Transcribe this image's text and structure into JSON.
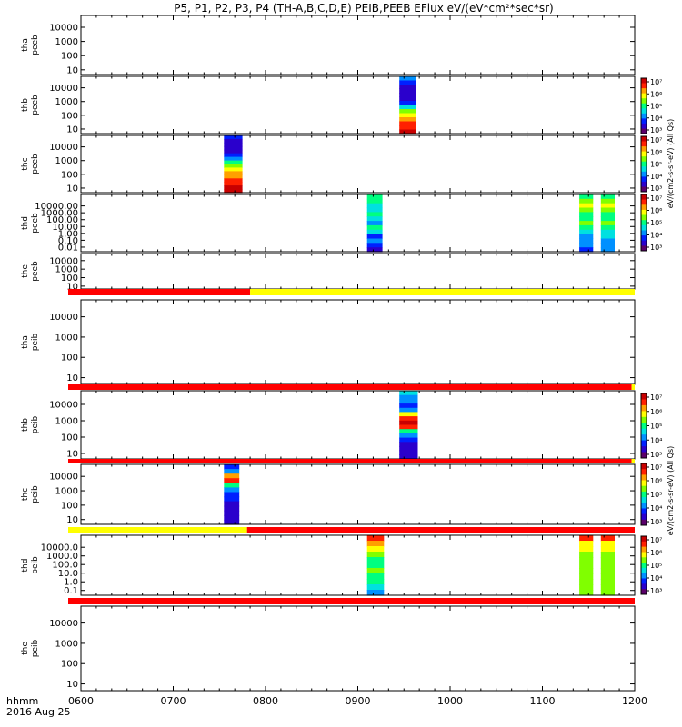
{
  "title": "P5, P1, P2, P3, P4 (TH-A,B,C,D,E) PEIB,PEEB EFlux eV/(eV*cm²*sec*sr)",
  "colorbar_label_top": "eV/(cm2-s-sr-eV) (All Qs)",
  "colorbar_label_bottom": "eV/(cm2-s-sr-eV) (All Qs)",
  "x_axis": {
    "unit_label": "hhmm",
    "date_label": "2016 Aug 25",
    "ticks": [
      "0600",
      "0700",
      "0800",
      "0900",
      "1000",
      "1100",
      "1200"
    ]
  },
  "colors": {
    "flag_red": "#ff0000",
    "flag_yellow": "#ffff00",
    "colormap": [
      "#5a006a",
      "#2a00cc",
      "#0020ff",
      "#0090ff",
      "#00e0e0",
      "#00ff80",
      "#80ff00",
      "#ffff00",
      "#ffa000",
      "#ff2000",
      "#c80000"
    ]
  },
  "colorbar_ticks": [
    "10⁷",
    "10⁶",
    "10⁵",
    "10⁴",
    "10³"
  ],
  "chart_data": {
    "type": "heatmap",
    "x_range": [
      "2016-08-25 06:00",
      "2016-08-25 12:00"
    ],
    "x_scale": "time",
    "y_scale": "log",
    "grid": false,
    "colorbar_scale": "log",
    "panels": [
      {
        "name": "tha-peeb",
        "label_lines": [
          "tha",
          "peeb"
        ],
        "y_ticks": [
          "10000",
          "1000",
          "100",
          "10"
        ],
        "y_range_eV": [
          5,
          30000
        ],
        "has_data": false,
        "has_colorbar": false,
        "blocks": []
      },
      {
        "name": "thb-peeb",
        "label_lines": [
          "thb",
          "peeb"
        ],
        "y_ticks": [
          "10000",
          "1000",
          "100",
          "10"
        ],
        "y_range_eV": [
          5,
          30000
        ],
        "has_data": true,
        "has_colorbar": true,
        "blocks": [
          {
            "start": "09:27",
            "end": "09:38",
            "colors": [
              3,
              2,
              1,
              1,
              1,
              1,
              2,
              4,
              6,
              7,
              8,
              9,
              9,
              10
            ]
          }
        ]
      },
      {
        "name": "thc-peeb",
        "label_lines": [
          "thc",
          "peeb"
        ],
        "y_ticks": [
          "10000",
          "1000",
          "100",
          "10"
        ],
        "y_range_eV": [
          5,
          30000
        ],
        "has_data": true,
        "has_colorbar": true,
        "blocks": [
          {
            "start": "07:33",
            "end": "07:45",
            "colors": [
              2,
              1,
              1,
              1,
              1,
              2,
              3,
              5,
              6,
              7,
              8,
              8,
              9,
              9,
              10,
              10
            ]
          }
        ]
      },
      {
        "name": "thd-peeb",
        "label_lines": [
          "thd",
          "peeb"
        ],
        "y_ticks": [
          "10000.00",
          "1000.00",
          "100.00",
          "10.00",
          "1.00",
          "0.10",
          "0.01"
        ],
        "y_range_eV": [
          0.01,
          30000
        ],
        "has_data": true,
        "has_colorbar": true,
        "blocks": [
          {
            "start": "09:06",
            "end": "09:16",
            "colors": [
              5,
              5,
              4,
              4,
              5,
              4,
              3,
              5,
              4,
              2,
              3,
              2,
              1
            ]
          },
          {
            "start": "11:24",
            "end": "11:33",
            "colors": [
              5,
              6,
              7,
              6,
              5,
              5,
              6,
              5,
              4,
              3,
              3,
              3,
              2
            ]
          },
          {
            "start": "11:38",
            "end": "11:47",
            "colors": [
              5,
              6,
              7,
              6,
              5,
              5,
              6,
              5,
              4,
              4,
              3,
              3,
              3
            ]
          }
        ]
      },
      {
        "name": "the-peeb",
        "label_lines": [
          "the",
          "peeb"
        ],
        "y_ticks": [
          "10000",
          "1000",
          "100",
          "10"
        ],
        "y_range_eV": [
          5,
          30000
        ],
        "has_data": false,
        "has_colorbar": false,
        "blocks": []
      },
      {
        "name": "tha-peib",
        "label_lines": [
          "tha",
          "peib"
        ],
        "y_ticks": [
          "10000",
          "1000",
          "100",
          "10"
        ],
        "y_range_eV": [
          5,
          30000
        ],
        "has_data": false,
        "has_colorbar": false,
        "blocks": []
      },
      {
        "name": "thb-peib",
        "label_lines": [
          "thb",
          "peib"
        ],
        "y_ticks": [
          "10000",
          "1000",
          "100",
          "10"
        ],
        "y_range_eV": [
          5,
          30000
        ],
        "has_data": true,
        "has_colorbar": true,
        "blocks": [
          {
            "start": "09:27",
            "end": "09:39",
            "colors": [
              4,
              3,
              3,
              2,
              3,
              7,
              9,
              10,
              9,
              5,
              3,
              2,
              1,
              1,
              1,
              1
            ]
          }
        ]
      },
      {
        "name": "thc-peib",
        "label_lines": [
          "thc",
          "peib"
        ],
        "y_ticks": [
          "10000",
          "1000",
          "100",
          "10"
        ],
        "y_range_eV": [
          5,
          30000
        ],
        "has_data": true,
        "has_colorbar": true,
        "blocks": [
          {
            "start": "07:33",
            "end": "07:43",
            "colors": [
              2,
              3,
              8,
              9,
              5,
              3,
              2,
              2,
              1,
              1,
              1,
              1,
              1
            ]
          }
        ]
      },
      {
        "name": "thd-peib",
        "label_lines": [
          "thd",
          "peib"
        ],
        "y_ticks": [
          "10000.0",
          "1000.0",
          "100.0",
          "10.0",
          "1.0",
          "0.1"
        ],
        "y_range_eV": [
          0.03,
          30000
        ],
        "has_data": true,
        "has_colorbar": true,
        "blocks": [
          {
            "start": "09:06",
            "end": "09:17",
            "colors": [
              9,
              8,
              7,
              6,
              5,
              5,
              6,
              5,
              5,
              4,
              3
            ]
          },
          {
            "start": "11:24",
            "end": "11:33",
            "colors": [
              9,
              7,
              7,
              6,
              6,
              6,
              6,
              6,
              6,
              6,
              6
            ]
          },
          {
            "start": "11:38",
            "end": "11:47",
            "colors": [
              9,
              7,
              7,
              6,
              6,
              6,
              6,
              6,
              6,
              6,
              6
            ]
          }
        ]
      },
      {
        "name": "the-peib",
        "label_lines": [
          "the",
          "peib"
        ],
        "y_ticks": [
          "10000",
          "1000",
          "100",
          "10"
        ],
        "y_range_eV": [
          5,
          30000
        ],
        "has_data": false,
        "has_colorbar": false,
        "blocks": []
      }
    ],
    "flag_bars": [
      {
        "after_panel": "the-peeb",
        "segments": [
          {
            "start": "06:00",
            "end": "07:50",
            "color": "red"
          },
          {
            "start": "07:50",
            "end": "12:00",
            "color": "yellow"
          }
        ]
      },
      {
        "after_panel": "tha-peib",
        "segments": [
          {
            "start": "06:00",
            "end": "11:58",
            "color": "red"
          },
          {
            "start": "11:58",
            "end": "12:00",
            "color": "yellow"
          }
        ]
      },
      {
        "after_panel": "thb-peib",
        "segments": [
          {
            "start": "06:00",
            "end": "11:58",
            "color": "red"
          },
          {
            "start": "11:58",
            "end": "12:00",
            "color": "yellow"
          }
        ]
      },
      {
        "after_panel": "thc-peib",
        "segments": [
          {
            "start": "06:00",
            "end": "07:48",
            "color": "yellow"
          },
          {
            "start": "07:48",
            "end": "12:00",
            "color": "red"
          }
        ]
      },
      {
        "after_panel": "thd-peib",
        "segments": [
          {
            "start": "06:00",
            "end": "12:00",
            "color": "red"
          }
        ]
      }
    ]
  }
}
